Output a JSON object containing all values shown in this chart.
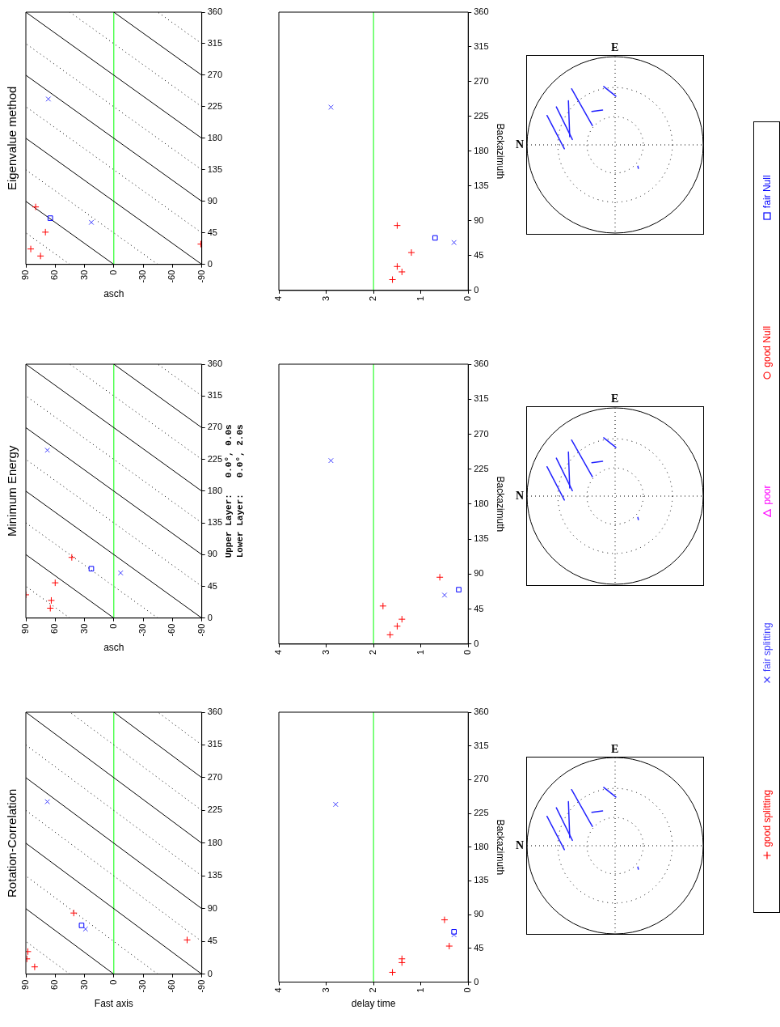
{
  "chart_data": [
    {
      "type": "scatter",
      "title": "Rotation-Correlation",
      "xlabel": "Fast axis",
      "xlim": [
        90,
        -90
      ],
      "xticks": [
        90,
        60,
        30,
        0,
        -30,
        -60,
        -90
      ],
      "ylim": [
        0,
        360
      ],
      "yticks": [
        0,
        45,
        90,
        135,
        180,
        225,
        270,
        315,
        360
      ],
      "legend": "right",
      "ref_lines": [
        {
          "axis": "x",
          "value": 0,
          "color": "#00ff00"
        }
      ],
      "series": [
        {
          "name": "good splitting",
          "color": "#ff0000",
          "marker": "cross",
          "x": [
            81,
            89,
            88,
            -75,
            41
          ],
          "values": [
            10,
            21,
            31,
            47,
            84
          ]
        },
        {
          "name": "fair splitting",
          "color": "#4040ff",
          "marker": "x",
          "x": [
            29,
            68
          ],
          "values": [
            62,
            237
          ]
        },
        {
          "name": "poor",
          "color": "#ff00ff",
          "marker": "triangle"
        },
        {
          "name": "good Null",
          "color": "#ff0000",
          "marker": "circle"
        },
        {
          "name": "fair Null",
          "color": "#0000ff",
          "marker": "square",
          "x": [
            33
          ],
          "values": [
            67
          ]
        },
        {
          "type": "line",
          "color": "#000000",
          "line_style": "solid",
          "x": [
            0,
            90
          ],
          "values": [
            0,
            90
          ]
        },
        {
          "type": "line",
          "color": "#000000",
          "line_style": "solid",
          "x": [
            -90,
            90
          ],
          "values": [
            0,
            180
          ]
        },
        {
          "type": "line",
          "color": "#000000",
          "line_style": "solid",
          "x": [
            -90,
            90
          ],
          "values": [
            90,
            270
          ]
        },
        {
          "type": "line",
          "color": "#000000",
          "line_style": "solid",
          "x": [
            -90,
            90
          ],
          "values": [
            180,
            360
          ]
        },
        {
          "type": "line",
          "color": "#000000",
          "line_style": "solid",
          "x": [
            -90,
            0
          ],
          "values": [
            270,
            360
          ]
        },
        {
          "type": "line",
          "color": "#000000",
          "line_style": "dotted",
          "x": [
            45,
            90
          ],
          "values": [
            0,
            45
          ]
        },
        {
          "type": "line",
          "color": "#000000",
          "line_style": "dotted",
          "x": [
            -45,
            90
          ],
          "values": [
            0,
            135
          ]
        },
        {
          "type": "line",
          "color": "#000000",
          "line_style": "dotted",
          "x": [
            -90,
            90
          ],
          "values": [
            45,
            225
          ]
        },
        {
          "type": "line",
          "color": "#000000",
          "line_style": "dotted",
          "x": [
            -90,
            90
          ],
          "values": [
            135,
            315
          ]
        },
        {
          "type": "line",
          "color": "#000000",
          "line_style": "dotted",
          "x": [
            -90,
            45
          ],
          "values": [
            225,
            360
          ]
        },
        {
          "type": "line",
          "color": "#000000",
          "line_style": "dotted",
          "x": [
            -90,
            -45
          ],
          "values": [
            315,
            360
          ]
        }
      ]
    },
    {
      "type": "scatter",
      "title": "Minimum Energy",
      "xlabel": "asch",
      "xlim": [
        90,
        -90
      ],
      "xticks": [
        90,
        60,
        30,
        0,
        -30,
        -60,
        -90
      ],
      "ylim": [
        0,
        360
      ],
      "yticks": [
        0,
        45,
        90,
        135,
        180,
        225,
        270,
        315,
        360
      ],
      "annotations": [
        "Upper Layer:   0.0°, 0.0s",
        "Lower Layer:   0.0°, 2.0s"
      ],
      "ref_lines": [
        {
          "axis": "x",
          "value": 0,
          "color": "#00ff00"
        }
      ],
      "series": [
        {
          "color": "#ff0000",
          "marker": "cross",
          "x": [
            65,
            64,
            90,
            60,
            43
          ],
          "values": [
            14,
            25,
            33,
            50,
            86
          ]
        },
        {
          "color": "#4040ff",
          "marker": "x",
          "x": [
            -7,
            68
          ],
          "values": [
            64,
            238
          ]
        },
        {
          "color": "#0000ff",
          "marker": "square",
          "x": [
            23
          ],
          "values": [
            70
          ]
        },
        {
          "type": "line",
          "color": "#000000",
          "line_style": "solid",
          "x": [
            0,
            90
          ],
          "values": [
            0,
            90
          ]
        },
        {
          "type": "line",
          "color": "#000000",
          "line_style": "solid",
          "x": [
            -90,
            90
          ],
          "values": [
            0,
            180
          ]
        },
        {
          "type": "line",
          "color": "#000000",
          "line_style": "solid",
          "x": [
            -90,
            90
          ],
          "values": [
            90,
            270
          ]
        },
        {
          "type": "line",
          "color": "#000000",
          "line_style": "solid",
          "x": [
            -90,
            90
          ],
          "values": [
            180,
            360
          ]
        },
        {
          "type": "line",
          "color": "#000000",
          "line_style": "solid",
          "x": [
            -90,
            0
          ],
          "values": [
            270,
            360
          ]
        },
        {
          "type": "line",
          "color": "#000000",
          "line_style": "dotted",
          "x": [
            45,
            90
          ],
          "values": [
            0,
            45
          ]
        },
        {
          "type": "line",
          "color": "#000000",
          "line_style": "dotted",
          "x": [
            -45,
            90
          ],
          "values": [
            0,
            135
          ]
        },
        {
          "type": "line",
          "color": "#000000",
          "line_style": "dotted",
          "x": [
            -90,
            90
          ],
          "values": [
            45,
            225
          ]
        },
        {
          "type": "line",
          "color": "#000000",
          "line_style": "dotted",
          "x": [
            -90,
            90
          ],
          "values": [
            135,
            315
          ]
        },
        {
          "type": "line",
          "color": "#000000",
          "line_style": "dotted",
          "x": [
            -90,
            45
          ],
          "values": [
            225,
            360
          ]
        },
        {
          "type": "line",
          "color": "#000000",
          "line_style": "dotted",
          "x": [
            -90,
            -45
          ],
          "values": [
            315,
            360
          ]
        }
      ]
    },
    {
      "type": "scatter",
      "title": "Eigenvalue method",
      "xlabel": "asch",
      "xlim": [
        90,
        -90
      ],
      "xticks": [
        90,
        60,
        30,
        0,
        -30,
        -60,
        -90
      ],
      "ylim": [
        0,
        360
      ],
      "yticks": [
        0,
        45,
        90,
        135,
        180,
        225,
        270,
        315,
        360
      ],
      "ref_lines": [
        {
          "axis": "x",
          "value": 0,
          "color": "#00ff00"
        }
      ],
      "series": [
        {
          "color": "#ff0000",
          "marker": "cross",
          "x": [
            75,
            85,
            -89,
            70,
            80
          ],
          "values": [
            12,
            22,
            29,
            46,
            82
          ]
        },
        {
          "color": "#4040ff",
          "marker": "x",
          "x": [
            23,
            67
          ],
          "values": [
            60,
            236
          ]
        },
        {
          "color": "#0000ff",
          "marker": "square",
          "x": [
            65
          ],
          "values": [
            66
          ]
        },
        {
          "type": "line",
          "color": "#000000",
          "line_style": "solid",
          "x": [
            0,
            90
          ],
          "values": [
            0,
            90
          ]
        },
        {
          "type": "line",
          "color": "#000000",
          "line_style": "solid",
          "x": [
            -90,
            90
          ],
          "values": [
            0,
            180
          ]
        },
        {
          "type": "line",
          "color": "#000000",
          "line_style": "solid",
          "x": [
            -90,
            90
          ],
          "values": [
            90,
            270
          ]
        },
        {
          "type": "line",
          "color": "#000000",
          "line_style": "solid",
          "x": [
            -90,
            90
          ],
          "values": [
            180,
            360
          ]
        },
        {
          "type": "line",
          "color": "#000000",
          "line_style": "solid",
          "x": [
            -90,
            0
          ],
          "values": [
            270,
            360
          ]
        },
        {
          "type": "line",
          "color": "#000000",
          "line_style": "dotted",
          "x": [
            45,
            90
          ],
          "values": [
            0,
            45
          ]
        },
        {
          "type": "line",
          "color": "#000000",
          "line_style": "dotted",
          "x": [
            -45,
            90
          ],
          "values": [
            0,
            135
          ]
        },
        {
          "type": "line",
          "color": "#000000",
          "line_style": "dotted",
          "x": [
            -90,
            90
          ],
          "values": [
            45,
            225
          ]
        },
        {
          "type": "line",
          "color": "#000000",
          "line_style": "dotted",
          "x": [
            -90,
            90
          ],
          "values": [
            135,
            315
          ]
        },
        {
          "type": "line",
          "color": "#000000",
          "line_style": "dotted",
          "x": [
            -90,
            45
          ],
          "values": [
            225,
            360
          ]
        },
        {
          "type": "line",
          "color": "#000000",
          "line_style": "dotted",
          "x": [
            -90,
            -45
          ],
          "values": [
            315,
            360
          ]
        }
      ]
    },
    {
      "type": "scatter",
      "xlabel": "delay time",
      "ylabel": "Backazimuth",
      "xlim": [
        4,
        0
      ],
      "xticks": [
        4,
        3,
        2,
        1,
        0
      ],
      "ylim": [
        0,
        360
      ],
      "yticks": [
        0,
        45,
        90,
        135,
        180,
        225,
        270,
        315,
        360
      ],
      "ref_lines": [
        {
          "axis": "x",
          "value": 2,
          "color": "#00ff00"
        }
      ],
      "series": [
        {
          "color": "#ff0000",
          "marker": "cross",
          "x": [
            1.6,
            1.4,
            1.4,
            0.4,
            0.5
          ],
          "values": [
            13,
            26,
            31,
            48,
            83
          ]
        },
        {
          "color": "#4040ff",
          "marker": "x",
          "x": [
            0.3,
            2.8
          ],
          "values": [
            63,
            237
          ]
        },
        {
          "color": "#0000ff",
          "marker": "square",
          "x": [
            0.3
          ],
          "values": [
            67
          ]
        }
      ]
    },
    {
      "type": "scatter",
      "ylabel": "Backazimuth",
      "xlim": [
        4,
        0
      ],
      "xticks": [
        4,
        3,
        2,
        1,
        0
      ],
      "ylim": [
        0,
        360
      ],
      "yticks": [
        0,
        45,
        90,
        135,
        180,
        225,
        270,
        315,
        360
      ],
      "ref_lines": [
        {
          "axis": "x",
          "value": 2,
          "color": "#00ff00"
        }
      ],
      "series": [
        {
          "color": "#ff0000",
          "marker": "cross",
          "x": [
            1.65,
            1.5,
            1.4,
            1.8,
            0.6
          ],
          "values": [
            12,
            23,
            32,
            49,
            86
          ]
        },
        {
          "color": "#4040ff",
          "marker": "x",
          "x": [
            0.5,
            2.9
          ],
          "values": [
            63,
            236
          ]
        },
        {
          "color": "#0000ff",
          "marker": "square",
          "x": [
            0.2
          ],
          "values": [
            70
          ]
        }
      ]
    },
    {
      "type": "scatter",
      "ylabel": "Backazimuth",
      "xlim": [
        4,
        0
      ],
      "xticks": [
        4,
        3,
        2,
        1,
        0
      ],
      "ylim": [
        0,
        360
      ],
      "yticks": [
        0,
        45,
        90,
        135,
        180,
        225,
        270,
        315,
        360
      ],
      "ref_lines": [
        {
          "axis": "x",
          "value": 2,
          "color": "#00ff00"
        }
      ],
      "series": [
        {
          "color": "#ff0000",
          "marker": "cross",
          "x": [
            1.6,
            1.4,
            1.5,
            1.2,
            1.5
          ],
          "values": [
            14,
            24,
            31,
            49,
            84
          ]
        },
        {
          "color": "#4040ff",
          "marker": "x",
          "x": [
            0.3,
            2.9
          ],
          "values": [
            62,
            237
          ]
        },
        {
          "color": "#0000ff",
          "marker": "square",
          "x": [
            0.7
          ],
          "values": [
            68
          ]
        }
      ]
    },
    {
      "type": "other",
      "annotations": [
        "N",
        "E"
      ]
    },
    {
      "type": "other",
      "annotations": [
        "N",
        "E"
      ]
    },
    {
      "type": "other",
      "annotations": [
        "N",
        "E"
      ]
    }
  ]
}
